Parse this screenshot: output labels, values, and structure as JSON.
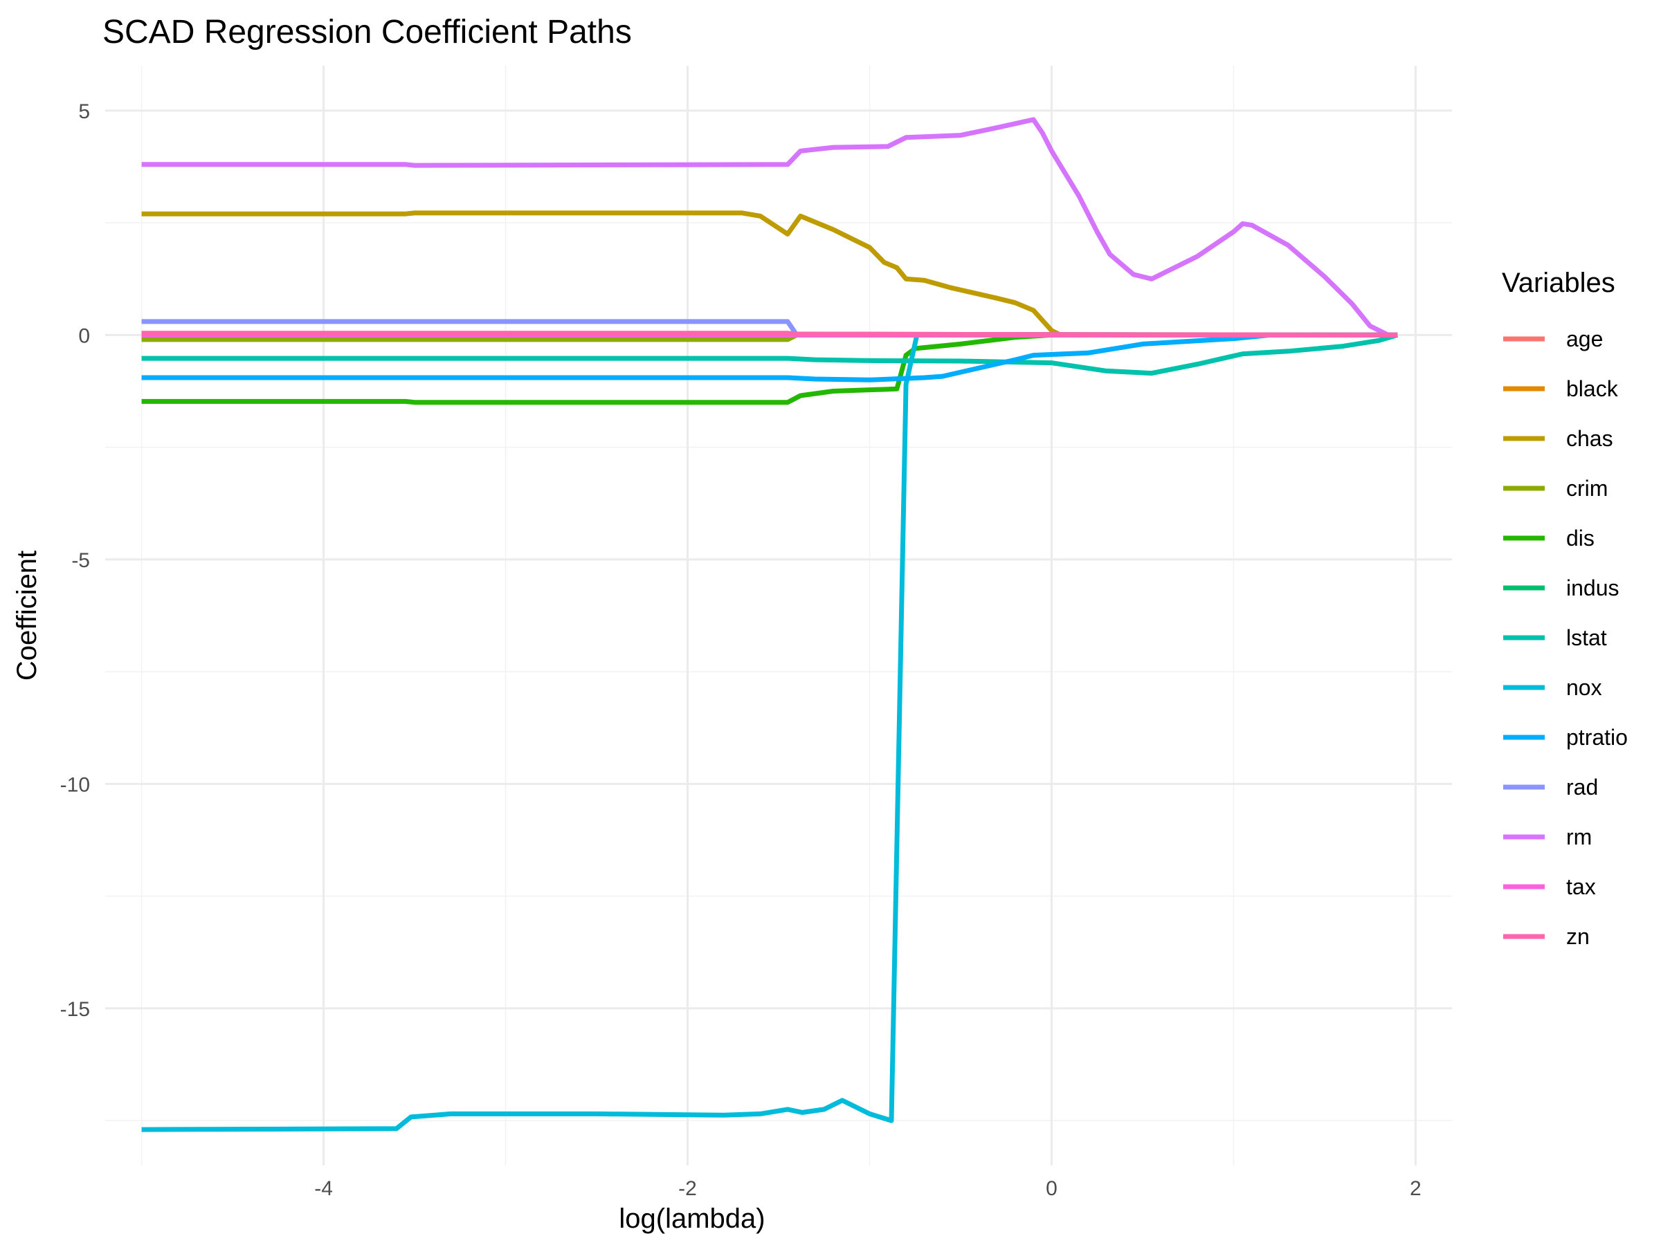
{
  "chart_data": {
    "type": "line",
    "title": "SCAD Regression Coefficient Paths",
    "xlabel": "log(lambda)",
    "ylabel": "Coefficient",
    "xlim": [
      -5.2,
      2.2
    ],
    "ylim": [
      -18.5,
      6
    ],
    "x_ticks": [
      -4,
      -2,
      0,
      2
    ],
    "y_ticks": [
      -15,
      -10,
      -5,
      0,
      5
    ],
    "grid": true,
    "legend_title": "Variables",
    "legend_position": "right",
    "series": [
      {
        "name": "age",
        "color": "#F8766D",
        "points": [
          [
            -5,
            0
          ],
          [
            -1.45,
            0
          ],
          [
            -1.4,
            0
          ],
          [
            1.9,
            0
          ]
        ]
      },
      {
        "name": "black",
        "color": "#E18A00",
        "points": [
          [
            -5,
            0.01
          ],
          [
            -1.4,
            0.01
          ],
          [
            1.9,
            0
          ]
        ]
      },
      {
        "name": "chas",
        "color": "#BE9C00",
        "points": [
          [
            -5,
            2.7
          ],
          [
            -3.55,
            2.7
          ],
          [
            -3.5,
            2.72
          ],
          [
            -1.7,
            2.72
          ],
          [
            -1.6,
            2.65
          ],
          [
            -1.45,
            2.25
          ],
          [
            -1.38,
            2.65
          ],
          [
            -1.2,
            2.35
          ],
          [
            -1.0,
            1.95
          ],
          [
            -0.92,
            1.62
          ],
          [
            -0.85,
            1.5
          ],
          [
            -0.8,
            1.25
          ],
          [
            -0.7,
            1.22
          ],
          [
            -0.55,
            1.05
          ],
          [
            -0.3,
            0.82
          ],
          [
            -0.2,
            0.72
          ],
          [
            -0.1,
            0.55
          ],
          [
            0,
            0.1
          ],
          [
            0.05,
            0
          ],
          [
            1.9,
            0
          ]
        ]
      },
      {
        "name": "crim",
        "color": "#8CAB00",
        "points": [
          [
            -5,
            -0.1
          ],
          [
            -1.45,
            -0.1
          ],
          [
            -1.4,
            0
          ],
          [
            1.9,
            0
          ]
        ]
      },
      {
        "name": "dis",
        "color": "#24B700",
        "points": [
          [
            -5,
            -1.48
          ],
          [
            -3.55,
            -1.48
          ],
          [
            -3.5,
            -1.5
          ],
          [
            -1.45,
            -1.5
          ],
          [
            -1.38,
            -1.35
          ],
          [
            -1.2,
            -1.25
          ],
          [
            -0.85,
            -1.2
          ],
          [
            -0.8,
            -0.45
          ],
          [
            -0.75,
            -0.3
          ],
          [
            -0.5,
            -0.2
          ],
          [
            -0.2,
            -0.05
          ],
          [
            0,
            0
          ],
          [
            1.9,
            0
          ]
        ]
      },
      {
        "name": "indus",
        "color": "#00BE70",
        "points": [
          [
            -5,
            0.02
          ],
          [
            -1.4,
            0.02
          ],
          [
            1.9,
            0
          ]
        ]
      },
      {
        "name": "lstat",
        "color": "#00C1AB",
        "points": [
          [
            -5,
            -0.52
          ],
          [
            -1.45,
            -0.52
          ],
          [
            -1.3,
            -0.55
          ],
          [
            -1.0,
            -0.57
          ],
          [
            -0.5,
            -0.58
          ],
          [
            0,
            -0.62
          ],
          [
            0.3,
            -0.8
          ],
          [
            0.55,
            -0.85
          ],
          [
            0.8,
            -0.65
          ],
          [
            1.05,
            -0.42
          ],
          [
            1.3,
            -0.36
          ],
          [
            1.6,
            -0.25
          ],
          [
            1.8,
            -0.12
          ],
          [
            1.9,
            0
          ]
        ]
      },
      {
        "name": "nox",
        "color": "#00BBDA",
        "points": [
          [
            -5,
            -17.7
          ],
          [
            -3.6,
            -17.68
          ],
          [
            -3.52,
            -17.42
          ],
          [
            -3.3,
            -17.35
          ],
          [
            -2.5,
            -17.35
          ],
          [
            -1.8,
            -17.38
          ],
          [
            -1.6,
            -17.35
          ],
          [
            -1.45,
            -17.25
          ],
          [
            -1.37,
            -17.32
          ],
          [
            -1.25,
            -17.25
          ],
          [
            -1.15,
            -17.05
          ],
          [
            -1.0,
            -17.35
          ],
          [
            -0.88,
            -17.5
          ],
          [
            -0.8,
            -1.1
          ],
          [
            -0.74,
            0
          ],
          [
            1.9,
            0
          ]
        ]
      },
      {
        "name": "ptratio",
        "color": "#00ACFC",
        "points": [
          [
            -5,
            -0.95
          ],
          [
            -1.45,
            -0.95
          ],
          [
            -1.3,
            -0.98
          ],
          [
            -1.0,
            -1.0
          ],
          [
            -0.7,
            -0.95
          ],
          [
            -0.6,
            -0.92
          ],
          [
            -0.2,
            -0.55
          ],
          [
            -0.1,
            -0.45
          ],
          [
            0.2,
            -0.4
          ],
          [
            0.5,
            -0.2
          ],
          [
            1.0,
            -0.08
          ],
          [
            1.2,
            0
          ],
          [
            1.9,
            0
          ]
        ]
      },
      {
        "name": "rad",
        "color": "#8B93FF",
        "points": [
          [
            -5,
            0.3
          ],
          [
            -1.45,
            0.3
          ],
          [
            -1.4,
            0
          ],
          [
            1.9,
            0
          ]
        ]
      },
      {
        "name": "rm",
        "color": "#D575FE",
        "points": [
          [
            -5,
            3.8
          ],
          [
            -3.55,
            3.8
          ],
          [
            -3.5,
            3.78
          ],
          [
            -1.45,
            3.8
          ],
          [
            -1.38,
            4.1
          ],
          [
            -1.2,
            4.18
          ],
          [
            -0.9,
            4.2
          ],
          [
            -0.8,
            4.4
          ],
          [
            -0.5,
            4.45
          ],
          [
            -0.3,
            4.62
          ],
          [
            -0.1,
            4.8
          ],
          [
            -0.05,
            4.5
          ],
          [
            0,
            4.1
          ],
          [
            0.15,
            3.1
          ],
          [
            0.25,
            2.3
          ],
          [
            0.32,
            1.8
          ],
          [
            0.45,
            1.35
          ],
          [
            0.55,
            1.25
          ],
          [
            0.8,
            1.75
          ],
          [
            1.0,
            2.3
          ],
          [
            1.05,
            2.48
          ],
          [
            1.1,
            2.45
          ],
          [
            1.3,
            2.0
          ],
          [
            1.5,
            1.3
          ],
          [
            1.65,
            0.7
          ],
          [
            1.75,
            0.2
          ],
          [
            1.85,
            0
          ],
          [
            1.9,
            0
          ]
        ]
      },
      {
        "name": "tax",
        "color": "#F962DD",
        "points": [
          [
            -5,
            0
          ],
          [
            -1.4,
            0
          ],
          [
            1.9,
            0
          ]
        ]
      },
      {
        "name": "zn",
        "color": "#FF65AC",
        "points": [
          [
            -5,
            0.04
          ],
          [
            -1.45,
            0.04
          ],
          [
            -1.4,
            0.02
          ],
          [
            1.9,
            0
          ]
        ]
      }
    ]
  }
}
